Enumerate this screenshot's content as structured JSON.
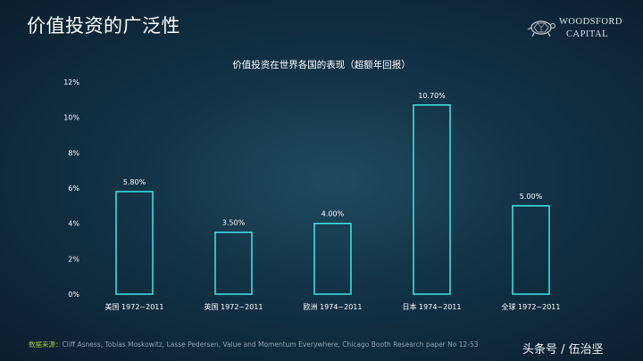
{
  "slide": {
    "title": "价值投资的广泛性"
  },
  "logo": {
    "line1": "WOODSFORD",
    "line2": "CAPITAL",
    "icon": "turtle-icon"
  },
  "chart_data": {
    "type": "bar",
    "title": "价值投资在世界各国的表现（超额年回报）",
    "categories": [
      "美国 1972~2011",
      "英国 1972~2011",
      "欧洲 1974~2011",
      "日本 1974~2011",
      "全球 1972~2011"
    ],
    "values": [
      5.8,
      3.5,
      4.0,
      10.7,
      5.0
    ],
    "value_labels": [
      "5.80%",
      "3.50%",
      "4.00%",
      "10.70%",
      "5.00%"
    ],
    "yticks": [
      "0%",
      "2%",
      "4%",
      "6%",
      "8%",
      "10%",
      "12%"
    ],
    "ylim": [
      0,
      12
    ],
    "xlabel": "",
    "ylabel": "",
    "grid": false,
    "bar_style": "outline",
    "bar_color": "#3ee8e8"
  },
  "source": {
    "label": "数据来源：",
    "text": "Cliff Asness, Tobias Moskowitz, Lasse Pedersen, Value and Momentum Everywhere, Chicago Booth Research paper No 12-53"
  },
  "watermark": "头条号 / 伍治坚"
}
